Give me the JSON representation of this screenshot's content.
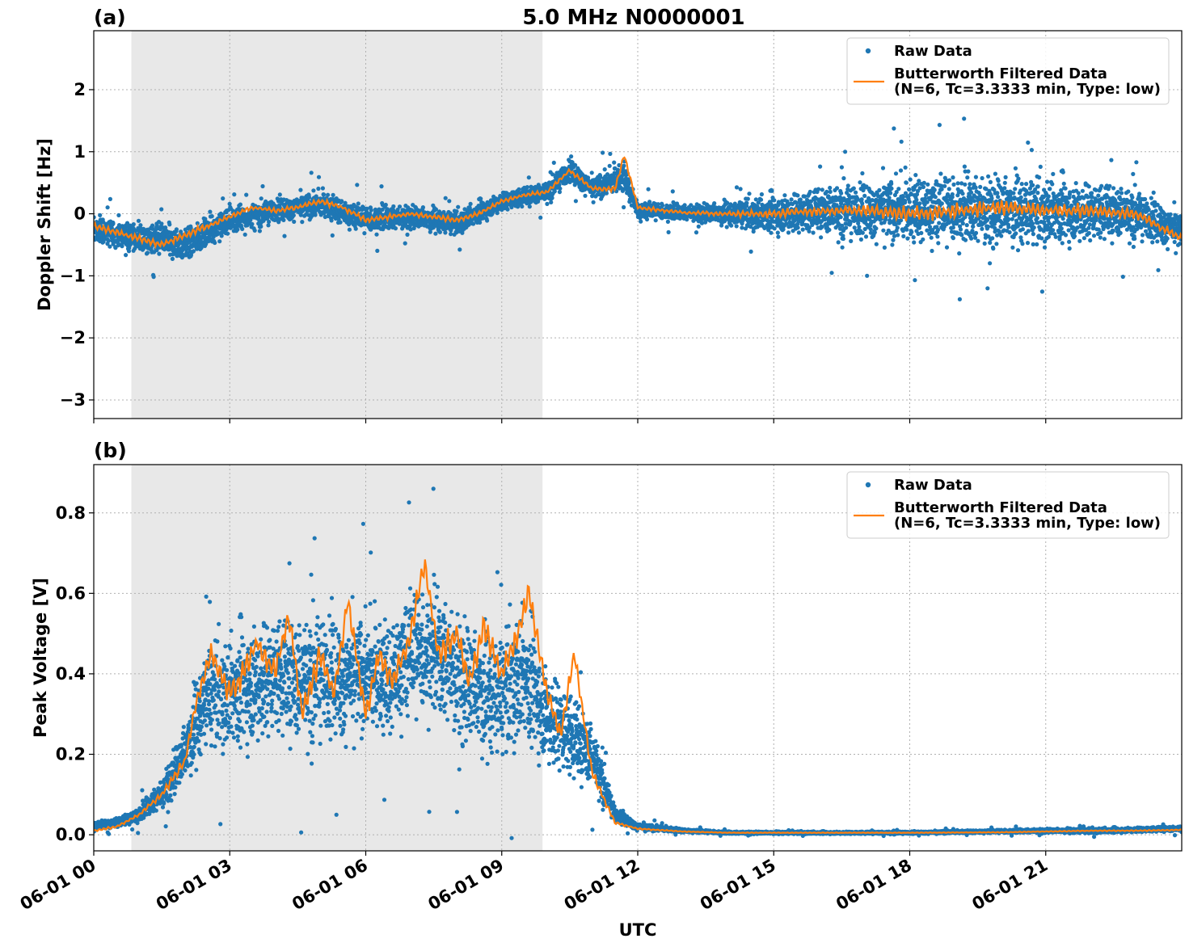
{
  "title": "5.0 MHz N0000001",
  "colors": {
    "raw": "#1f77b4",
    "filtered": "#ff7f0e",
    "shade": "#e8e8e8"
  },
  "chart_data": [
    {
      "type": "scatter",
      "panel_label": "(a)",
      "title": "5.0 MHz N0000001",
      "xlabel": "",
      "ylabel": "Doppler Shift [Hz]",
      "xlim_hours": [
        0,
        24
      ],
      "ylim": [
        -3.3,
        2.95
      ],
      "yticks": [
        -3,
        -2,
        -1,
        0,
        1,
        2
      ],
      "ytick_labels": [
        "−3",
        "−2",
        "−1",
        "0",
        "1",
        "2"
      ],
      "grid": true,
      "legend_placement": "top-right",
      "night_shade_hours": [
        0.83,
        9.9
      ],
      "series": [
        {
          "name": "Raw Data",
          "kind": "scatter",
          "x": [
            0,
            1,
            2,
            3,
            4,
            5,
            6,
            7,
            8,
            9,
            10,
            10.5,
            11,
            11.7,
            12,
            13,
            14,
            15,
            16,
            17,
            18,
            19,
            20,
            21,
            22,
            23,
            24
          ],
          "center": [
            -0.25,
            -0.4,
            -0.5,
            -0.1,
            0.05,
            0.15,
            -0.1,
            -0.05,
            -0.15,
            0.2,
            0.35,
            0.7,
            0.4,
            0.6,
            0.05,
            0.02,
            0.0,
            0.0,
            0.05,
            0.05,
            0.05,
            0.05,
            0.05,
            0.05,
            0.05,
            0.0,
            -0.3
          ],
          "spread": [
            0.35,
            0.4,
            0.45,
            0.35,
            0.3,
            0.35,
            0.35,
            0.3,
            0.3,
            0.25,
            0.25,
            0.3,
            0.3,
            0.4,
            0.25,
            0.2,
            0.3,
            0.5,
            0.6,
            0.75,
            0.9,
            0.95,
            0.9,
            0.85,
            0.8,
            0.6,
            0.5
          ]
        },
        {
          "name": "Butterworth Filtered Data\n(N=6, Tc=3.3333 min, Type: low)",
          "kind": "line",
          "x": [
            0,
            0.5,
            1,
            1.5,
            2,
            2.5,
            3,
            3.5,
            4,
            4.5,
            5,
            5.5,
            6,
            6.5,
            7,
            7.5,
            8,
            8.5,
            9,
            9.5,
            10,
            10.5,
            11,
            11.5,
            11.7,
            12,
            13,
            14,
            15,
            16,
            17,
            18,
            19,
            20,
            21,
            22,
            23,
            24
          ],
          "values": [
            -0.2,
            -0.3,
            -0.4,
            -0.5,
            -0.35,
            -0.2,
            -0.05,
            0.1,
            0.05,
            0.1,
            0.2,
            0.1,
            -0.1,
            -0.05,
            0.0,
            -0.05,
            -0.1,
            0.0,
            0.2,
            0.3,
            0.35,
            0.7,
            0.4,
            0.4,
            0.95,
            0.1,
            0.02,
            0.0,
            0.0,
            0.05,
            0.05,
            0.0,
            0.05,
            0.1,
            0.05,
            0.05,
            0.0,
            -0.4
          ]
        }
      ]
    },
    {
      "type": "scatter",
      "panel_label": "(b)",
      "xlabel": "UTC",
      "ylabel": "Peak Voltage [V]",
      "xlim_hours": [
        0,
        24
      ],
      "ylim": [
        -0.04,
        0.92
      ],
      "yticks": [
        0.0,
        0.2,
        0.4,
        0.6,
        0.8
      ],
      "ytick_labels": [
        "0.0",
        "0.2",
        "0.4",
        "0.6",
        "0.8"
      ],
      "xtick_hours": [
        0,
        3,
        6,
        9,
        12,
        15,
        18,
        21
      ],
      "xtick_labels": [
        "06-01 00",
        "06-01 03",
        "06-01 06",
        "06-01 09",
        "06-01 12",
        "06-01 15",
        "06-01 18",
        "06-01 21"
      ],
      "grid": true,
      "legend_placement": "top-right",
      "night_shade_hours": [
        0.83,
        9.9
      ],
      "series": [
        {
          "name": "Raw Data",
          "kind": "scatter",
          "x": [
            0,
            0.5,
            1,
            1.5,
            2,
            2.5,
            3,
            3.5,
            4,
            4.5,
            5,
            5.5,
            6,
            6.5,
            7,
            7.5,
            8,
            8.5,
            9,
            9.5,
            10,
            10.5,
            11,
            11.5,
            12,
            13,
            14,
            15,
            18,
            21,
            22,
            24
          ],
          "center": [
            0.02,
            0.03,
            0.05,
            0.1,
            0.2,
            0.35,
            0.35,
            0.38,
            0.4,
            0.38,
            0.4,
            0.38,
            0.4,
            0.38,
            0.45,
            0.45,
            0.4,
            0.35,
            0.35,
            0.4,
            0.3,
            0.25,
            0.2,
            0.05,
            0.02,
            0.01,
            0.005,
            0.005,
            0.005,
            0.01,
            0.01,
            0.015
          ],
          "spread": [
            0.02,
            0.02,
            0.03,
            0.06,
            0.12,
            0.2,
            0.22,
            0.25,
            0.25,
            0.24,
            0.25,
            0.24,
            0.24,
            0.24,
            0.26,
            0.26,
            0.25,
            0.24,
            0.24,
            0.26,
            0.2,
            0.18,
            0.12,
            0.03,
            0.015,
            0.008,
            0.005,
            0.005,
            0.005,
            0.008,
            0.01,
            0.01
          ]
        },
        {
          "name": "Butterworth Filtered Data\n(N=6, Tc=3.3333 min, Type: low)",
          "kind": "line",
          "x": [
            0,
            0.5,
            1,
            1.5,
            2,
            2.3,
            2.6,
            3,
            3.3,
            3.6,
            4,
            4.3,
            4.6,
            5,
            5.3,
            5.6,
            6,
            6.3,
            6.6,
            7,
            7.3,
            7.6,
            8,
            8.3,
            8.6,
            9,
            9.3,
            9.6,
            10,
            10.3,
            10.6,
            11,
            11.5,
            12,
            13,
            14,
            15,
            16,
            18,
            20,
            21,
            22,
            23,
            24
          ],
          "values": [
            0.01,
            0.02,
            0.05,
            0.1,
            0.18,
            0.35,
            0.45,
            0.35,
            0.4,
            0.48,
            0.4,
            0.55,
            0.3,
            0.45,
            0.35,
            0.58,
            0.3,
            0.45,
            0.38,
            0.5,
            0.68,
            0.45,
            0.5,
            0.38,
            0.52,
            0.4,
            0.48,
            0.6,
            0.35,
            0.25,
            0.45,
            0.15,
            0.03,
            0.015,
            0.008,
            0.005,
            0.005,
            0.005,
            0.005,
            0.006,
            0.008,
            0.01,
            0.01,
            0.012
          ]
        }
      ]
    }
  ]
}
